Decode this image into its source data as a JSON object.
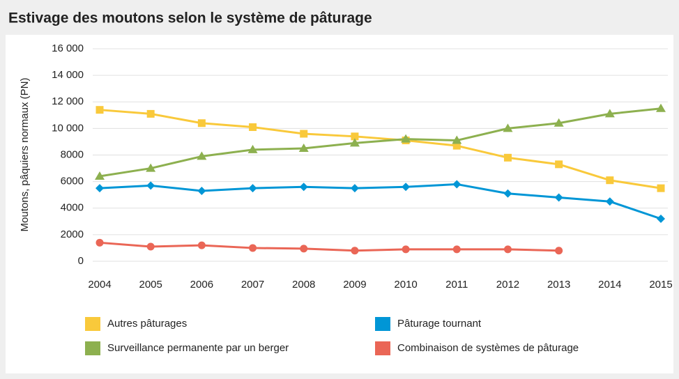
{
  "chart_data": {
    "type": "line",
    "title": "Estivage des moutons selon le système de pâturage",
    "ylabel": "Moutons, pâquiers normaux (PN)",
    "categories": [
      "2004",
      "2005",
      "2006",
      "2007",
      "2008",
      "2009",
      "2010",
      "2011",
      "2012",
      "2013",
      "2014",
      "2015"
    ],
    "ylim": [
      0,
      16000
    ],
    "yticks": [
      0,
      2000,
      4000,
      6000,
      8000,
      {
        "value": 10000,
        "label": "10 000"
      },
      {
        "value": 12000,
        "label": "12 000"
      },
      {
        "value": 14000,
        "label": "14 000"
      },
      {
        "value": 16000,
        "label": "16 000"
      }
    ],
    "grid": true,
    "series": [
      {
        "name": "Autres pâturages",
        "color": "#f9c93b",
        "marker": "square",
        "values": [
          11400,
          11100,
          10400,
          10100,
          9600,
          9400,
          9100,
          8700,
          7800,
          7300,
          6100,
          5500
        ]
      },
      {
        "name": "Surveillance permanente par un berger",
        "color": "#8db04f",
        "marker": "triangle",
        "values": [
          6400,
          7000,
          7900,
          8400,
          8500,
          8900,
          9200,
          9100,
          10000,
          10400,
          11100,
          11500
        ]
      },
      {
        "name": "Pâturage tournant",
        "color": "#0096d6",
        "marker": "diamond",
        "values": [
          5500,
          5700,
          5300,
          5500,
          5600,
          5500,
          5600,
          5800,
          5100,
          4800,
          4500,
          3200
        ]
      },
      {
        "name": "Combinaison de systèmes de pâturage",
        "color": "#ea6656",
        "marker": "circle",
        "values": [
          1400,
          1100,
          1200,
          1000,
          950,
          800,
          900,
          900,
          900,
          800,
          null,
          null
        ]
      }
    ]
  }
}
